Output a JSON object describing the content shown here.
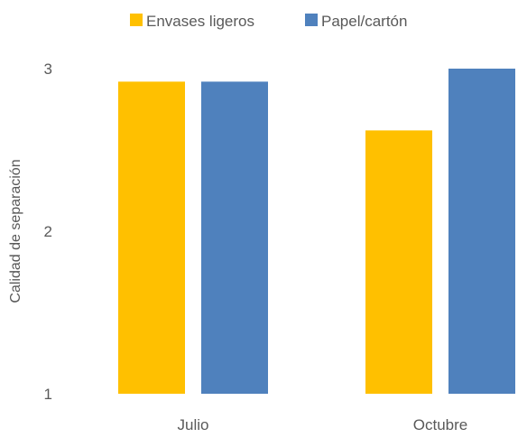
{
  "chart_data": {
    "type": "bar",
    "title": "",
    "xlabel": "",
    "ylabel": "Calidad de separación",
    "categories": [
      "Julio",
      "Octubre"
    ],
    "series": [
      {
        "name": "Envases ligeros",
        "values": [
          2.92,
          2.62
        ],
        "color": "#FFC000"
      },
      {
        "name": "Papel/cartón",
        "values": [
          2.92,
          3.0
        ],
        "color": "#4F81BD"
      }
    ],
    "ylim": [
      1,
      3
    ],
    "yticks": [
      "1",
      "2",
      "3"
    ],
    "grid": false,
    "legend": "top-center"
  }
}
